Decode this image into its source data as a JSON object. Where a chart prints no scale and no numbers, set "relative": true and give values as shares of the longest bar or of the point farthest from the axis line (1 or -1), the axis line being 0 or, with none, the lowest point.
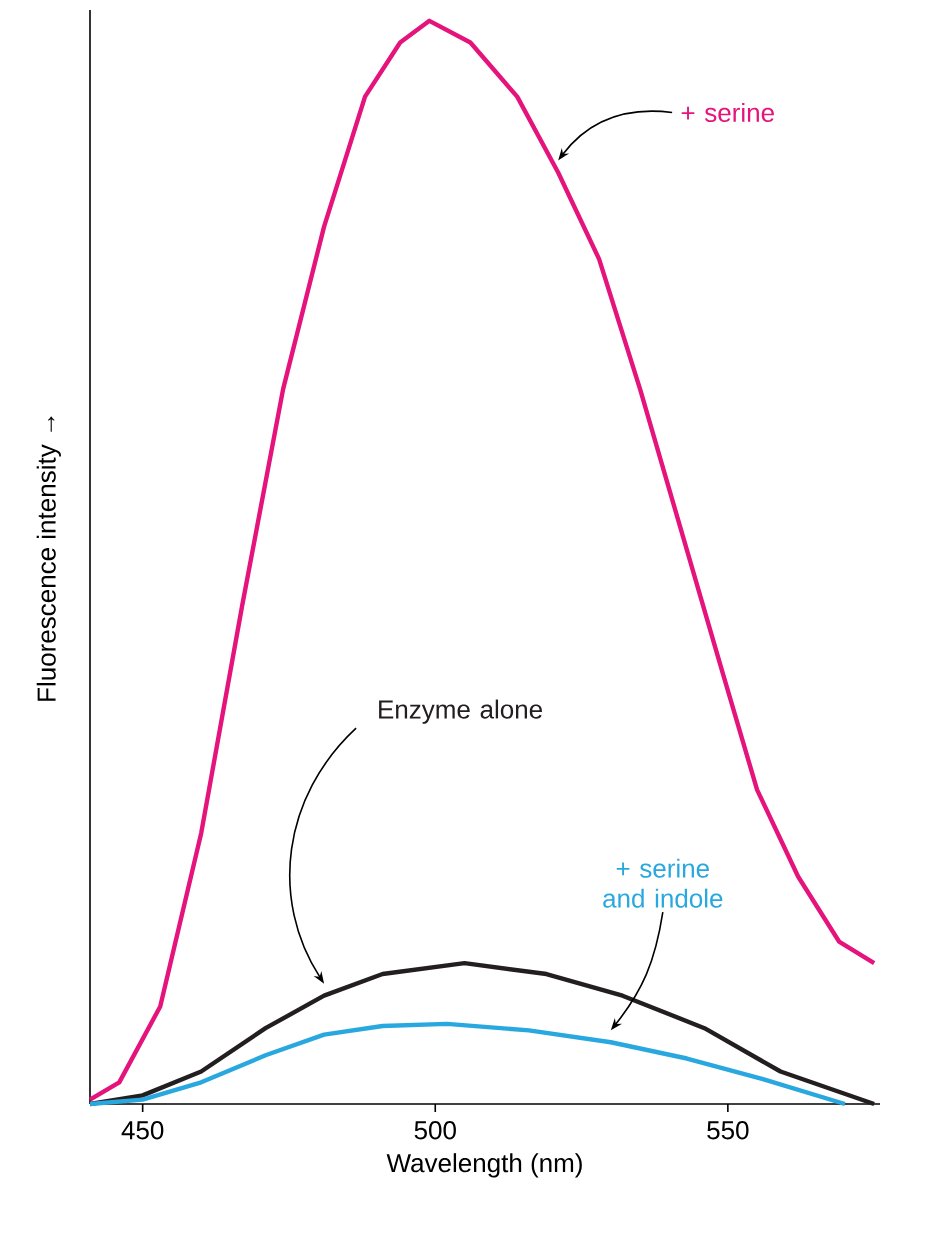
{
  "chart_data": {
    "type": "line",
    "xlabel": "Wavelength (nm)",
    "ylabel": "Fluorescence intensity →",
    "relative": true,
    "xlim": [
      441,
      576
    ],
    "xticks": [
      450,
      500,
      550
    ],
    "series": [
      {
        "name": "+ serine",
        "color": "#e4147c",
        "x": [
          441,
          446,
          453,
          460,
          467,
          474,
          481,
          488,
          494,
          499,
          506,
          514,
          521,
          528,
          535,
          542,
          549,
          555,
          562,
          569,
          575
        ],
        "values": [
          0.004,
          0.02,
          0.09,
          0.25,
          0.46,
          0.66,
          0.81,
          0.93,
          0.98,
          1.0,
          0.98,
          0.93,
          0.86,
          0.78,
          0.66,
          0.53,
          0.4,
          0.29,
          0.21,
          0.15,
          0.13
        ]
      },
      {
        "name": "Enzyme alone",
        "color": "#231f20",
        "x": [
          441,
          450,
          460,
          471,
          481,
          491,
          505,
          519,
          532,
          546,
          559,
          575
        ],
        "values": [
          0,
          0.008,
          0.03,
          0.07,
          0.1,
          0.12,
          0.13,
          0.12,
          0.1,
          0.07,
          0.03,
          0
        ]
      },
      {
        "name": "+ serine and indole",
        "color": "#29a8e0",
        "x": [
          441,
          450,
          460,
          471,
          481,
          491,
          502,
          516,
          530,
          543,
          556,
          570
        ],
        "values": [
          0,
          0.004,
          0.02,
          0.045,
          0.064,
          0.072,
          0.074,
          0.068,
          0.057,
          0.042,
          0.023,
          0
        ]
      }
    ]
  }
}
